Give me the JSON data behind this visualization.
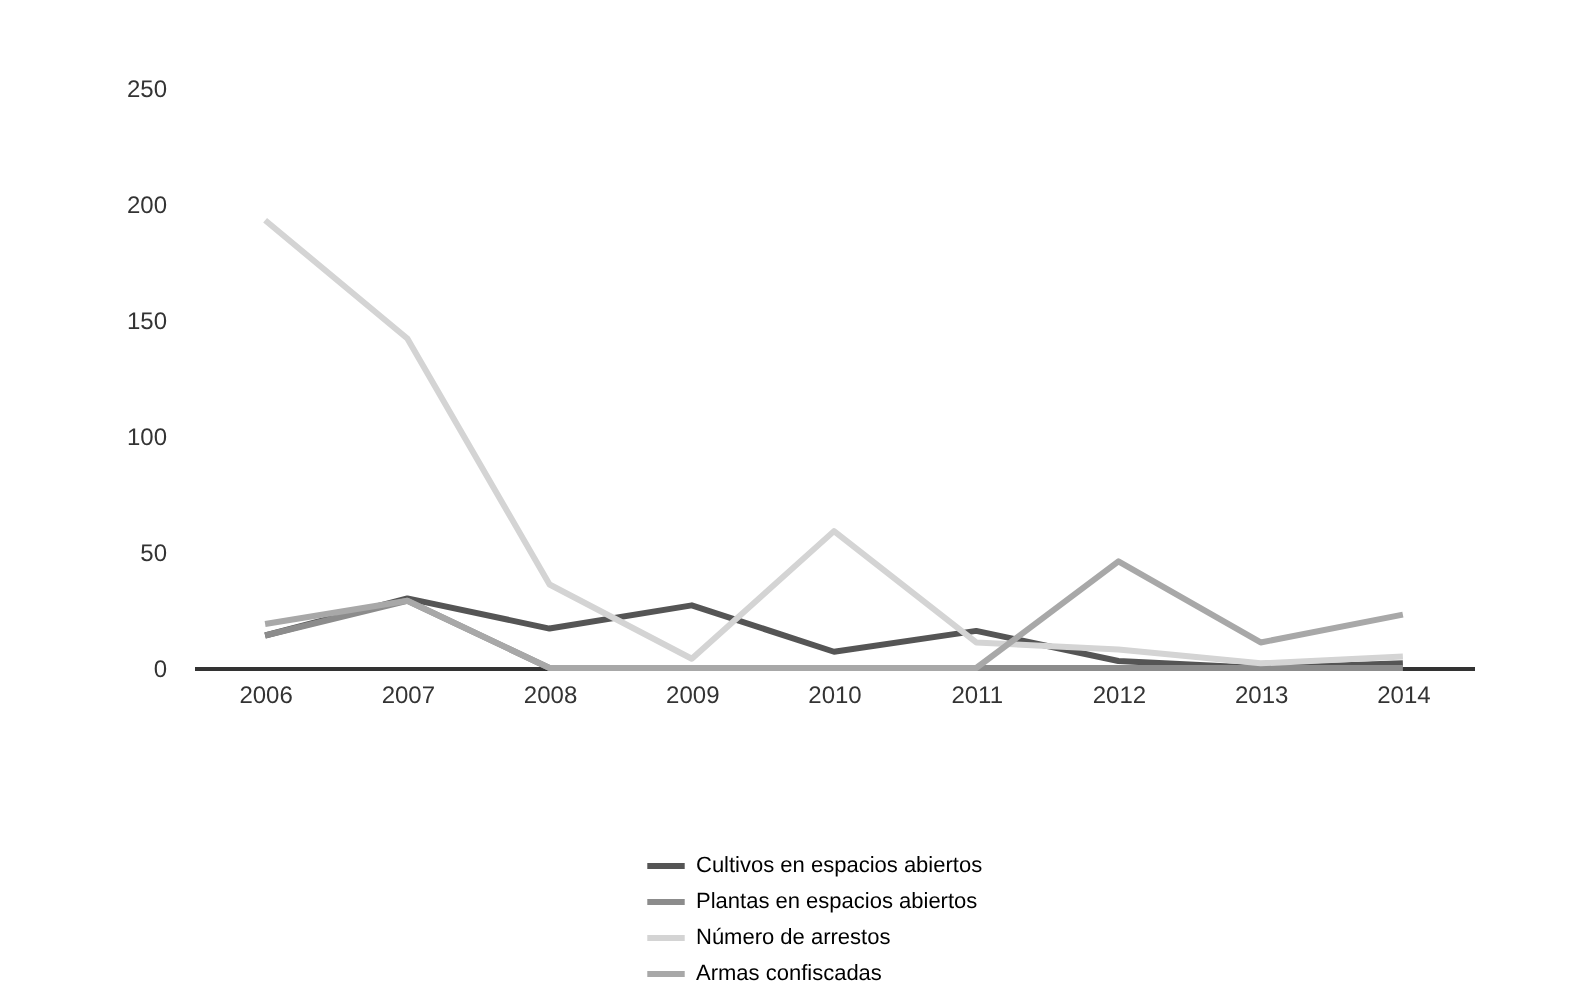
{
  "chart_data": {
    "type": "line",
    "categories": [
      "2006",
      "2007",
      "2008",
      "2009",
      "2010",
      "2011",
      "2012",
      "2013",
      "2014"
    ],
    "series": [
      {
        "name": "Cultivos en espacios abiertos",
        "color": "#555555",
        "values": [
          14,
          30,
          17,
          27,
          7,
          16,
          3,
          0,
          2
        ]
      },
      {
        "name": "Plantas en espacios abiertos",
        "color": "#8c8c8c",
        "values": [
          14,
          29,
          0,
          0,
          0,
          0,
          0,
          0,
          0
        ]
      },
      {
        "name": "Número de arrestos",
        "color": "#d4d4d4",
        "values": [
          193,
          142,
          36,
          4,
          59,
          11,
          8,
          2,
          5
        ]
      },
      {
        "name": "Armas confiscadas",
        "color": "#a8a8a8",
        "values": [
          19,
          29,
          0,
          0,
          0,
          0,
          46,
          11,
          23
        ]
      }
    ],
    "ylim": [
      0,
      250
    ],
    "yticks": [
      0,
      50,
      100,
      150,
      200,
      250
    ],
    "grid": false,
    "legend": "bottom",
    "marker": "none",
    "line_style": "solid"
  }
}
